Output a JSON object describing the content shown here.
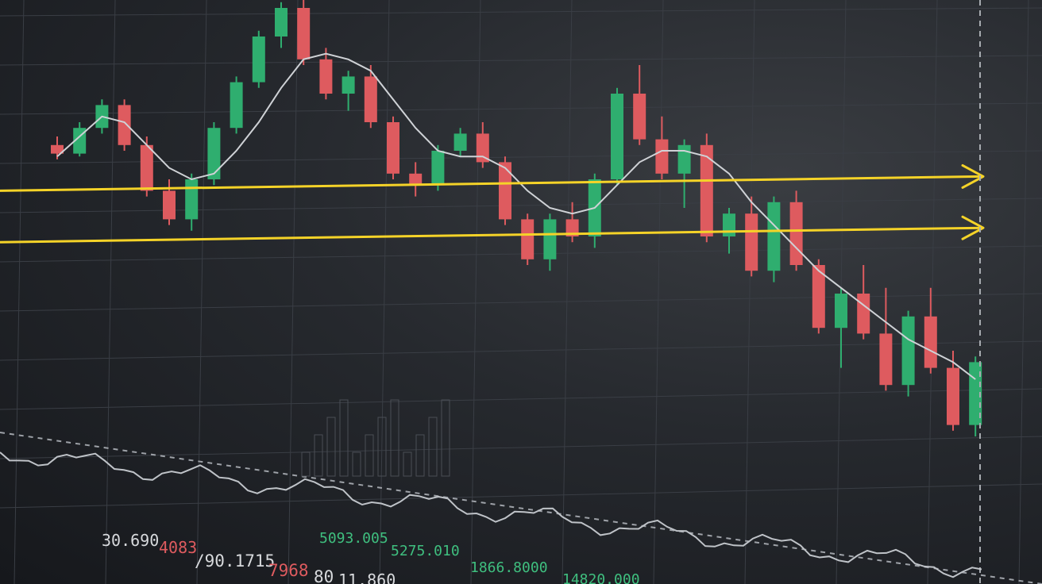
{
  "chart_data": {
    "type": "candlestick",
    "xlabel": "",
    "ylabel": "",
    "grid": true,
    "legend": "none",
    "colors": {
      "up": "#2fae6f",
      "down": "#de5b5f",
      "ma_line": "#cfd2d6",
      "levels": "#f5d328",
      "grid": "#3a3e45",
      "background": "#1c1f24"
    },
    "candles": [
      {
        "open": 52,
        "high": 55,
        "low": 47,
        "close": 49
      },
      {
        "open": 49,
        "high": 60,
        "low": 48,
        "close": 58
      },
      {
        "open": 58,
        "high": 68,
        "low": 56,
        "close": 66
      },
      {
        "open": 66,
        "high": 68,
        "low": 50,
        "close": 52
      },
      {
        "open": 52,
        "high": 55,
        "low": 34,
        "close": 36
      },
      {
        "open": 36,
        "high": 40,
        "low": 24,
        "close": 26
      },
      {
        "open": 26,
        "high": 42,
        "low": 22,
        "close": 40
      },
      {
        "open": 40,
        "high": 60,
        "low": 38,
        "close": 58
      },
      {
        "open": 58,
        "high": 76,
        "low": 56,
        "close": 74
      },
      {
        "open": 74,
        "high": 92,
        "low": 72,
        "close": 90
      },
      {
        "open": 90,
        "high": 102,
        "low": 86,
        "close": 100
      },
      {
        "open": 100,
        "high": 104,
        "low": 80,
        "close": 82
      },
      {
        "open": 82,
        "high": 86,
        "low": 68,
        "close": 70
      },
      {
        "open": 70,
        "high": 78,
        "low": 64,
        "close": 76
      },
      {
        "open": 76,
        "high": 80,
        "low": 58,
        "close": 60
      },
      {
        "open": 60,
        "high": 62,
        "low": 40,
        "close": 42
      },
      {
        "open": 42,
        "high": 46,
        "low": 34,
        "close": 38
      },
      {
        "open": 38,
        "high": 52,
        "low": 36,
        "close": 50
      },
      {
        "open": 50,
        "high": 58,
        "low": 48,
        "close": 56
      },
      {
        "open": 56,
        "high": 60,
        "low": 44,
        "close": 46
      },
      {
        "open": 46,
        "high": 48,
        "low": 24,
        "close": 26
      },
      {
        "open": 26,
        "high": 28,
        "low": 10,
        "close": 12
      },
      {
        "open": 12,
        "high": 28,
        "low": 8,
        "close": 26
      },
      {
        "open": 26,
        "high": 32,
        "low": 18,
        "close": 20
      },
      {
        "open": 20,
        "high": 42,
        "low": 16,
        "close": 40
      },
      {
        "open": 40,
        "high": 72,
        "low": 38,
        "close": 70
      },
      {
        "open": 70,
        "high": 80,
        "low": 52,
        "close": 54
      },
      {
        "open": 54,
        "high": 62,
        "low": 40,
        "close": 42
      },
      {
        "open": 42,
        "high": 54,
        "low": 30,
        "close": 52
      },
      {
        "open": 52,
        "high": 56,
        "low": 18,
        "close": 20
      },
      {
        "open": 20,
        "high": 30,
        "low": 14,
        "close": 28
      },
      {
        "open": 28,
        "high": 34,
        "low": 6,
        "close": 8
      },
      {
        "open": 8,
        "high": 34,
        "low": 4,
        "close": 32
      },
      {
        "open": 32,
        "high": 36,
        "low": 8,
        "close": 10
      },
      {
        "open": 10,
        "high": 12,
        "low": -14,
        "close": -12
      },
      {
        "open": -12,
        "high": 2,
        "low": -26,
        "close": 0
      },
      {
        "open": 0,
        "high": 10,
        "low": -16,
        "close": -14
      },
      {
        "open": -14,
        "high": 2,
        "low": -34,
        "close": -32
      },
      {
        "open": -32,
        "high": -6,
        "low": -36,
        "close": -8
      },
      {
        "open": -8,
        "high": 2,
        "low": -28,
        "close": -26
      },
      {
        "open": -26,
        "high": -20,
        "low": -48,
        "close": -46
      },
      {
        "open": -46,
        "high": -22,
        "low": -50,
        "close": -24
      }
    ],
    "ma_line": [
      48,
      55,
      62,
      60,
      52,
      44,
      40,
      42,
      50,
      60,
      72,
      82,
      84,
      82,
      78,
      68,
      58,
      50,
      48,
      48,
      44,
      36,
      30,
      28,
      30,
      38,
      46,
      50,
      50,
      48,
      42,
      32,
      24,
      16,
      8,
      2,
      -4,
      -10,
      -16,
      -20,
      -24,
      -30
    ],
    "levels": [
      41,
      23
    ],
    "bottom_readouts": [
      "30.690",
      "4083",
      "/90.1715",
      "7968",
      "80",
      "11.860",
      "5093.005",
      "5275.010",
      "1866.8000",
      "14820.000"
    ]
  }
}
